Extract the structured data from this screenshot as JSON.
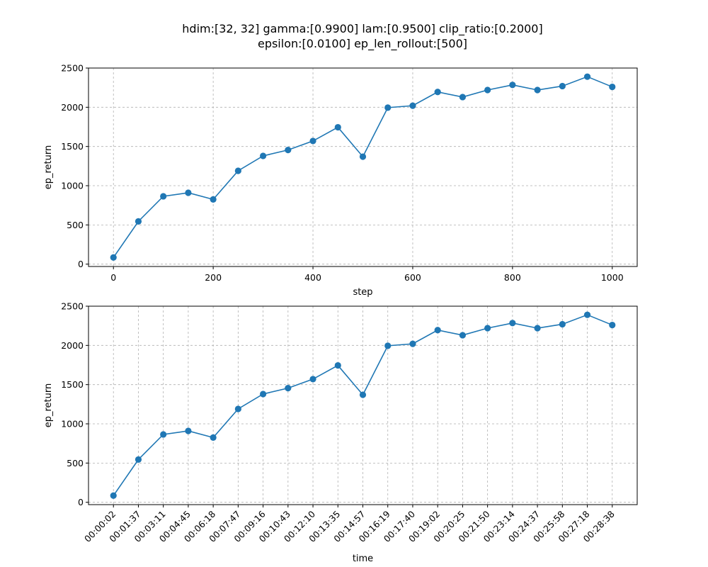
{
  "figure": {
    "title_lines": [
      "hdim:[32, 32] gamma:[0.9900] lam:[0.9500] clip_ratio:[0.2000]",
      "epsilon:[0.0100] ep_len_rollout:[500]"
    ]
  },
  "chart_data": [
    {
      "type": "line",
      "xlabel": "step",
      "ylabel": "ep_return",
      "x": [
        0,
        50,
        100,
        150,
        200,
        250,
        300,
        350,
        400,
        450,
        500,
        550,
        600,
        650,
        700,
        750,
        800,
        850,
        900,
        950,
        1000
      ],
      "xticks": [
        0,
        200,
        400,
        600,
        800,
        1000
      ],
      "xlim": [
        -50,
        1050
      ],
      "yticks": [
        0,
        500,
        1000,
        1500,
        2000,
        2500
      ],
      "ylim": [
        -30,
        2500
      ],
      "grid": true,
      "color": "#1f77b4",
      "marker": "circle",
      "series": [
        {
          "values": [
            85,
            545,
            865,
            910,
            825,
            1190,
            1380,
            1455,
            1570,
            1745,
            1370,
            1995,
            2020,
            2195,
            2130,
            2220,
            2285,
            2220,
            2270,
            2390,
            2260
          ]
        }
      ]
    },
    {
      "type": "line",
      "xlabel": "time",
      "ylabel": "ep_return",
      "categories": [
        "00:00:02",
        "00:01:37",
        "00:03:11",
        "00:04:45",
        "00:06:18",
        "00:07:47",
        "00:09:16",
        "00:10:43",
        "00:12:10",
        "00:13:35",
        "00:14:57",
        "00:16:19",
        "00:17:40",
        "00:19:02",
        "00:20:25",
        "00:21:50",
        "00:23:14",
        "00:24:37",
        "00:25:58",
        "00:27:18",
        "00:28:38"
      ],
      "yticks": [
        0,
        500,
        1000,
        1500,
        2000,
        2500
      ],
      "ylim": [
        -30,
        2500
      ],
      "grid": true,
      "color": "#1f77b4",
      "marker": "circle",
      "series": [
        {
          "values": [
            85,
            545,
            865,
            910,
            825,
            1190,
            1380,
            1455,
            1570,
            1745,
            1370,
            1995,
            2020,
            2195,
            2130,
            2220,
            2285,
            2220,
            2270,
            2390,
            2260
          ]
        }
      ]
    }
  ]
}
